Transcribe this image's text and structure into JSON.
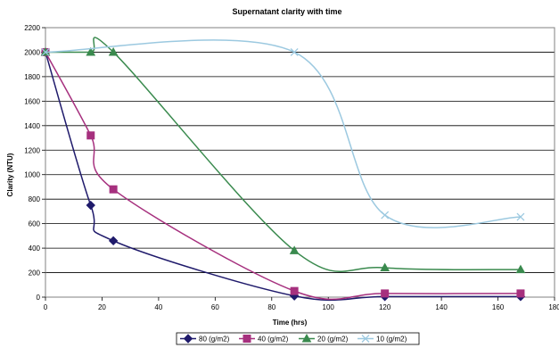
{
  "chart_data": {
    "type": "line",
    "title": "Supernatant clarity with time",
    "xlabel": "Time (hrs)",
    "ylabel": "Clarity (NTU)",
    "xlim": [
      0,
      180
    ],
    "ylim": [
      0,
      2200
    ],
    "xticks": [
      0,
      20,
      40,
      60,
      80,
      100,
      120,
      140,
      160,
      180
    ],
    "yticks": [
      0,
      200,
      400,
      600,
      800,
      1000,
      1200,
      1400,
      1600,
      1800,
      2000,
      2200
    ],
    "grid": "horizontal",
    "smooth": true,
    "legend_position": "bottom",
    "series": [
      {
        "name": "80 (g/m2)",
        "color": "#1f1a6b",
        "marker": "diamond",
        "x": [
          0,
          16,
          24,
          88,
          120,
          168
        ],
        "y": [
          2000,
          750,
          460,
          10,
          5,
          5
        ]
      },
      {
        "name": "40 (g/m2)",
        "color": "#a6307e",
        "marker": "square",
        "x": [
          0,
          16,
          24,
          88,
          120,
          168
        ],
        "y": [
          2000,
          1320,
          880,
          50,
          30,
          30
        ]
      },
      {
        "name": "20 (g/m2)",
        "color": "#3a8a4e",
        "marker": "triangle",
        "x": [
          0,
          16,
          24,
          88,
          120,
          168
        ],
        "y": [
          2000,
          2000,
          2000,
          380,
          240,
          225
        ]
      },
      {
        "name": "10 (g/m2)",
        "color": "#9cc9e0",
        "marker": "x",
        "x": [
          0,
          88,
          120,
          168
        ],
        "y": [
          2000,
          2000,
          670,
          655
        ]
      }
    ]
  }
}
